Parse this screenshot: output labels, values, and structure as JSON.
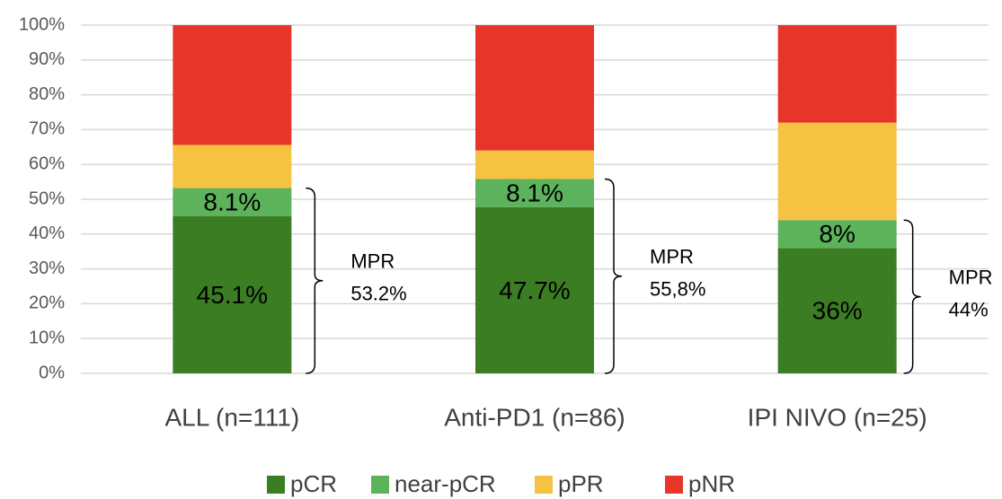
{
  "chart_data": {
    "type": "stacked_bar",
    "categories": [
      "ALL (n=111)",
      "Anti-PD1 (n=86)",
      "IPI NIVO (n=25)"
    ],
    "series": [
      {
        "name": "pCR",
        "color": "#3a7d23",
        "values": [
          45.1,
          47.7,
          36
        ],
        "value_labels": [
          "45.1%",
          "47.7%",
          "36%"
        ]
      },
      {
        "name": "near-pCR",
        "color": "#5cb35c",
        "values": [
          8.1,
          8.1,
          8
        ],
        "value_labels": [
          "8.1%",
          "8.1%",
          "8%"
        ]
      },
      {
        "name": "pPR",
        "color": "#f5c242",
        "values": [
          12.4,
          8.2,
          28
        ]
      },
      {
        "name": "pNR",
        "color": "#e8352a",
        "values": [
          34.4,
          36,
          28
        ]
      }
    ],
    "annotations": [
      {
        "label": "MPR",
        "value_label": "53.2%"
      },
      {
        "label": "MPR",
        "value_label": "55,8%"
      },
      {
        "label": "MPR",
        "value_label": "44%"
      }
    ],
    "ylim": [
      0,
      100
    ],
    "yticks": [
      {
        "value": 0,
        "label": "0%"
      },
      {
        "value": 10,
        "label": "10%"
      },
      {
        "value": 20,
        "label": "20%"
      },
      {
        "value": 30,
        "label": "30%"
      },
      {
        "value": 40,
        "label": "40%"
      },
      {
        "value": 50,
        "label": "50%"
      },
      {
        "value": 60,
        "label": "60%"
      },
      {
        "value": 70,
        "label": "70%"
      },
      {
        "value": 80,
        "label": "80%"
      },
      {
        "value": 90,
        "label": "90%"
      },
      {
        "value": 100,
        "label": "100%"
      }
    ],
    "grid": true,
    "legend": "bottom"
  }
}
